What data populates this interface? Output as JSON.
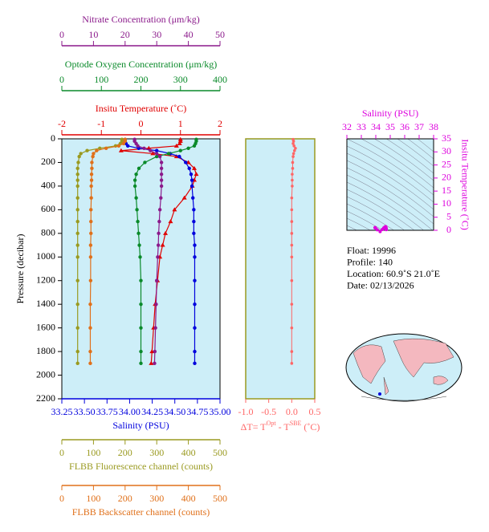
{
  "chart_data": [
    {
      "type": "line",
      "y_label": "Pressure (decibar)",
      "ylim": [
        0,
        2200
      ],
      "yticks": [
        0,
        200,
        400,
        600,
        800,
        1000,
        1200,
        1400,
        1600,
        1800,
        2000,
        2200
      ],
      "pressure": [
        5,
        20,
        40,
        60,
        80,
        100,
        125,
        150,
        200,
        250,
        300,
        350,
        400,
        500,
        600,
        700,
        800,
        900,
        1000,
        1200,
        1400,
        1600,
        1800,
        1900
      ],
      "x_axes": [
        {
          "label": "Nitrate Concentration (μm/kg)",
          "color": "#8b1a8b",
          "position": "top",
          "xlim": [
            0,
            50
          ],
          "xticks": [
            0,
            10,
            20,
            30,
            40,
            50
          ]
        },
        {
          "label": "Optode Oxygen Concentration (μm/kg)",
          "color": "#0a8a2a",
          "position": "top",
          "xlim": [
            0,
            400
          ],
          "xticks": [
            0,
            100,
            200,
            300,
            400
          ]
        },
        {
          "label": "Insitu Temperature (˚C)",
          "color": "#e00000",
          "position": "top",
          "xlim": [
            -2,
            2
          ],
          "xticks": [
            -2,
            -1,
            0,
            1,
            2
          ]
        },
        {
          "label": "Salinity (PSU)",
          "color": "#0000dd",
          "position": "bottom",
          "xlim": [
            33.25,
            35
          ],
          "xticks": [
            33.25,
            {
              "value": 33.5,
              "label": "33.50"
            },
            33.75,
            {
              "value": 34,
              "label": "34.00"
            },
            34.25,
            {
              "value": 34.5,
              "label": "34.50"
            },
            34.75,
            {
              "value": 35,
              "label": "35.00"
            }
          ]
        },
        {
          "label": "FLBB Fluorescence channel (counts)",
          "color": "#9a9a20",
          "position": "bottom",
          "xlim": [
            0,
            500
          ],
          "xticks": [
            0,
            100,
            200,
            300,
            400,
            500
          ]
        },
        {
          "label": "FLBB Backscatter channel (counts)",
          "color": "#e0701a",
          "position": "bottom",
          "xlim": [
            0,
            500
          ],
          "xticks": [
            0,
            100,
            200,
            300,
            400,
            500
          ]
        }
      ],
      "series": [
        {
          "axis": 2,
          "color": "#e00000",
          "values": [
            1.0,
            1.0,
            0.98,
            0.9,
            0.2,
            -0.5,
            0.3,
            0.9,
            1.2,
            1.35,
            1.4,
            1.35,
            1.3,
            1.1,
            0.85,
            0.75,
            0.62,
            0.55,
            0.48,
            0.42,
            0.36,
            0.32,
            0.28,
            0.26
          ]
        },
        {
          "axis": 3,
          "color": "#0000dd",
          "values": [
            33.95,
            33.95,
            33.96,
            33.98,
            34.1,
            34.3,
            34.45,
            34.55,
            34.62,
            34.66,
            34.68,
            34.69,
            34.69,
            34.7,
            34.71,
            34.71,
            34.71,
            34.72,
            34.72,
            34.72,
            34.72,
            34.72,
            34.72,
            34.72
          ]
        },
        {
          "axis": 1,
          "color": "#0a8a2a",
          "values": [
            340,
            340,
            338,
            335,
            320,
            300,
            270,
            240,
            210,
            195,
            188,
            185,
            185,
            188,
            190,
            192,
            194,
            196,
            198,
            200,
            200,
            200,
            200,
            200
          ]
        },
        {
          "axis": 0,
          "color": "#8b1a8b",
          "values": [
            23,
            23,
            23.5,
            24,
            26,
            28,
            30,
            31,
            31.5,
            31.5,
            31.5,
            31.5,
            31.5,
            31.3,
            31,
            30.8,
            30.6,
            30.5,
            30.3,
            30,
            29.8,
            29.6,
            29.4,
            29.3
          ]
        },
        {
          "axis": 4,
          "color": "#9a9a20",
          "values": [
            190,
            190,
            185,
            170,
            120,
            80,
            60,
            55,
            52,
            50,
            50,
            50,
            50,
            50,
            50,
            50,
            50,
            50,
            50,
            50,
            50,
            50,
            50,
            50
          ]
        },
        {
          "axis": 5,
          "color": "#e0701a",
          "values": [
            200,
            200,
            195,
            180,
            140,
            110,
            100,
            98,
            95,
            95,
            94,
            94,
            93,
            93,
            92,
            92,
            92,
            91,
            91,
            91,
            90,
            90,
            90,
            90
          ]
        }
      ]
    },
    {
      "type": "line",
      "x_label_parts": [
        "ΔT= T",
        "Opt",
        " - T",
        "SBE",
        " (˚C)"
      ],
      "color": "#ff6666",
      "xlim": [
        -1,
        0.5
      ],
      "xticks": [
        {
          "value": -1,
          "label": "-1.0"
        },
        -0.5,
        {
          "value": 0,
          "label": "0.0"
        },
        0.5
      ],
      "values": [
        0.03,
        0.04,
        0.03,
        0.05,
        0.08,
        0.06,
        0.04,
        0.03,
        0.02,
        0.02,
        0.01,
        0.01,
        0.01,
        0.0,
        0.0,
        0.0,
        0.0,
        0.0,
        0.0,
        0.0,
        0.0,
        0.0,
        0.0,
        0.0
      ]
    },
    {
      "type": "scatter",
      "x_label": "Salinity (PSU)",
      "y_label": "Insitu Temperature (˚C)",
      "color": "#dd00dd",
      "xlim": [
        32,
        38
      ],
      "xticks": [
        32,
        33,
        34,
        35,
        36,
        37,
        38
      ],
      "ylim": [
        0,
        35
      ],
      "yticks": [
        0,
        5,
        10,
        15,
        20,
        25,
        30,
        35
      ]
    }
  ],
  "info": [
    "Float:  19996",
    "Profile:  140",
    "Location:  60.9˚S  21.0˚E",
    "Date:  02/13/2026"
  ]
}
